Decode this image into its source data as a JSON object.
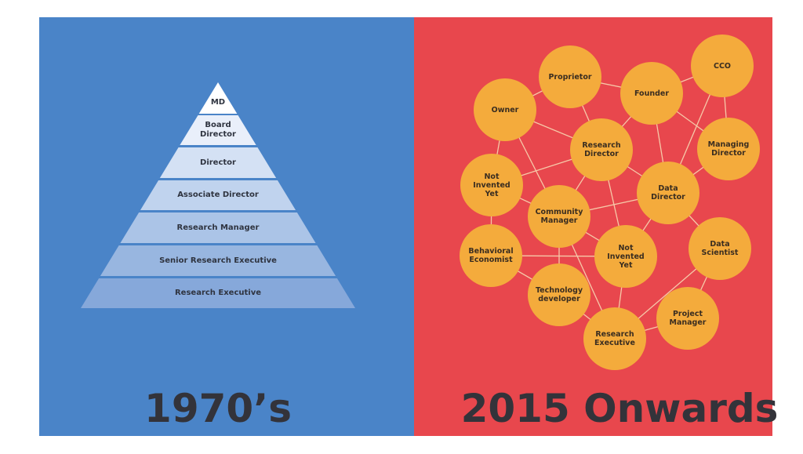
{
  "left": {
    "levels": [
      "MD",
      "Board Director",
      "Director",
      "Associate Director",
      "Research Manager",
      "Senior Research Executive",
      "Research Executive"
    ],
    "caption": "1970’s"
  },
  "right": {
    "nodes": [
      "Proprietor",
      "CCO",
      "Founder",
      "Owner",
      "Research Director",
      "Managing Director",
      "Not Invented Yet",
      "Data Director",
      "Community Manager",
      "Behavioral Economist",
      "Not Invented Yet",
      "Data Scientist",
      "Technology developer",
      "Project Manager",
      "Research Executive"
    ],
    "caption": "2015 Onwards"
  }
}
